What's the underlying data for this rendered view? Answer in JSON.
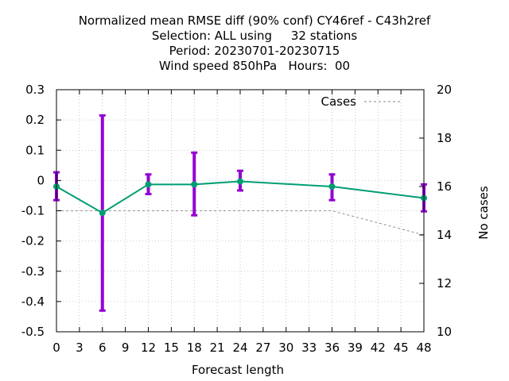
{
  "titles": [
    "Normalized mean RMSE diff (90% conf) CY46ref - C43h2ref",
    "Selection: ALL using     32 stations",
    "Period: 20230701-20230715",
    "Wind speed 850hPa   Hours:  00"
  ],
  "chart_data": {
    "type": "line",
    "xlabel": "Forecast length",
    "ylabel": "",
    "y2label": "No cases",
    "xlim": [
      0,
      48
    ],
    "ylim": [
      -0.5,
      0.3
    ],
    "y2lim": [
      10,
      20
    ],
    "xticks": [
      "0",
      "3",
      "6",
      "9",
      "12",
      "15",
      "18",
      "21",
      "24",
      "27",
      "30",
      "33",
      "36",
      "39",
      "42",
      "45",
      "48"
    ],
    "yticks": [
      "0.3",
      "0.2",
      "0.1",
      "0",
      "-0.1",
      "-0.2",
      "-0.3",
      "-0.4",
      "-0.5"
    ],
    "y2ticks": [
      "20",
      "18",
      "16",
      "14",
      "12",
      "10"
    ],
    "grid": true,
    "legend": {
      "position": "top-right",
      "label": "Cases"
    },
    "colors": {
      "line": "#009e73",
      "errorbar": "#9400d3",
      "cases": "#a0a0a0"
    },
    "series": [
      {
        "x": [
          0,
          6,
          12,
          18,
          24,
          36,
          48
        ],
        "values": [
          -0.02,
          -0.107,
          -0.013,
          -0.013,
          -0.003,
          -0.02,
          -0.058
        ],
        "lower": [
          -0.065,
          -0.43,
          -0.045,
          -0.115,
          -0.033,
          -0.065,
          -0.102
        ],
        "upper": [
          0.027,
          0.215,
          0.02,
          0.092,
          0.032,
          0.02,
          -0.013
        ]
      },
      {
        "name": "Cases",
        "axis": "y2",
        "x": [
          0,
          6,
          12,
          18,
          24,
          36,
          48
        ],
        "values": [
          15,
          15,
          15,
          15,
          15,
          15,
          14
        ]
      }
    ]
  }
}
